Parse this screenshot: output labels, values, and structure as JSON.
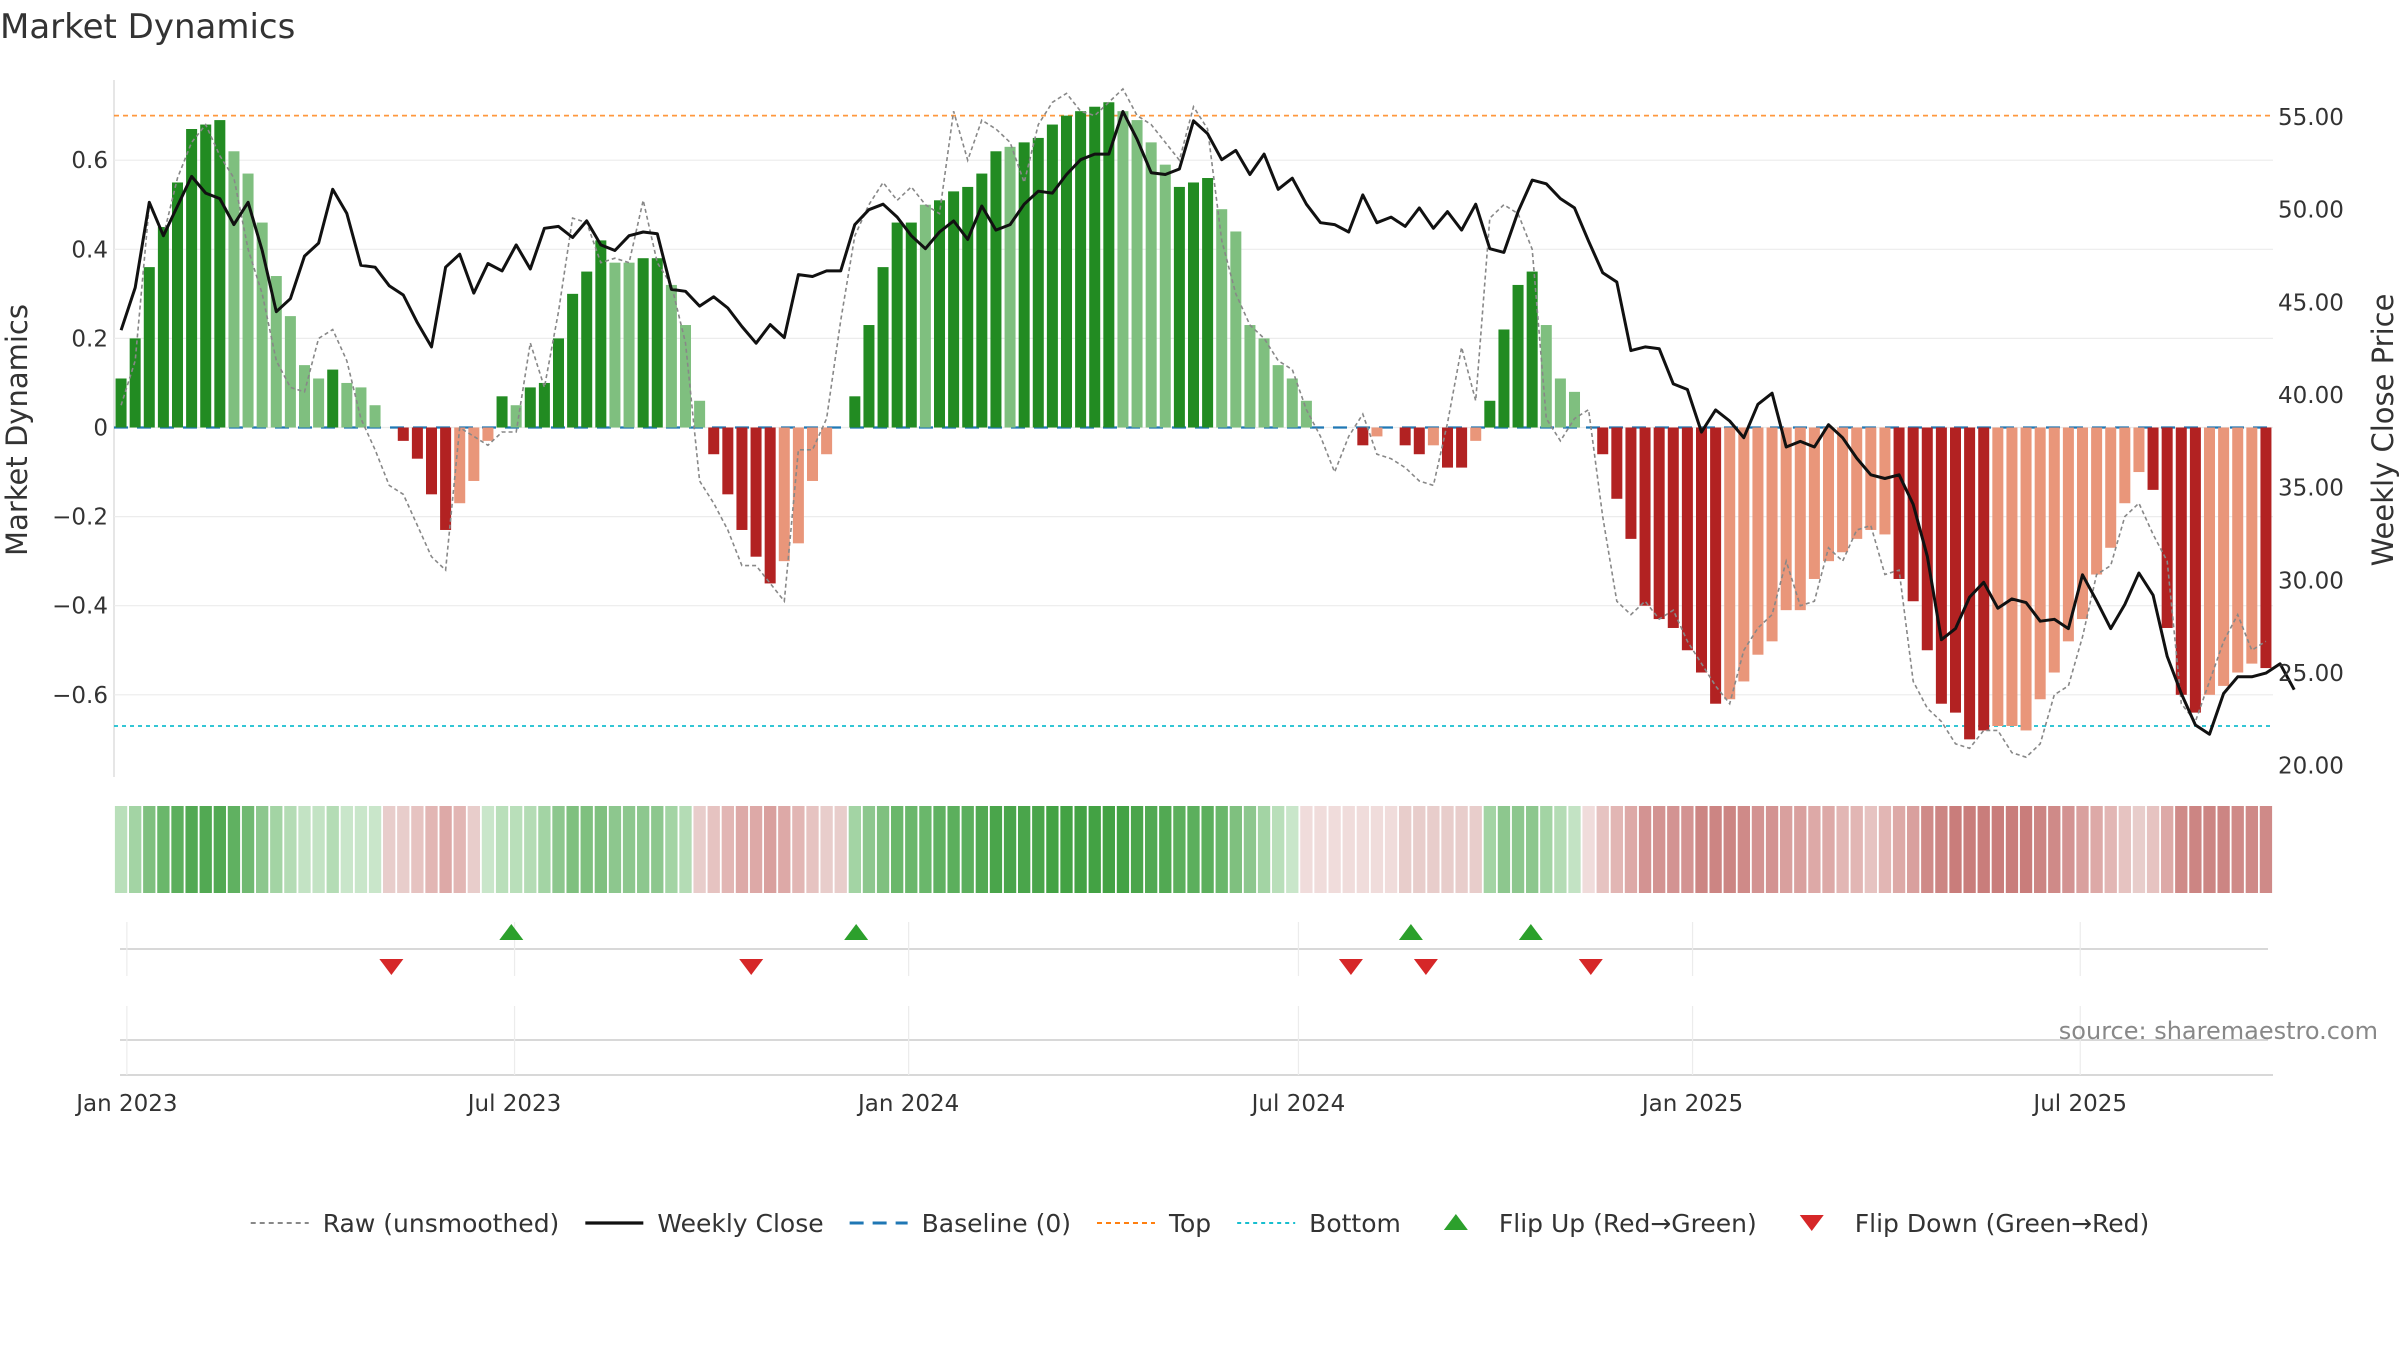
{
  "chart_data": {
    "type": "bar",
    "title": "Market Dynamics",
    "ylabel": "Market Dynamics",
    "y2label": "Weekly Close Price",
    "source": "source: sharemaestro.com",
    "ylim": [
      -0.78,
      0.78
    ],
    "y2lim": [
      19.5,
      57.0
    ],
    "x_start": "2022-12-26",
    "x_end": "2025-09-29",
    "y_ticks": [
      0.6,
      0.4,
      0.2,
      0,
      -0.2,
      -0.4,
      -0.6
    ],
    "y_tick_labels": [
      "0.6",
      "0.4",
      "0.2",
      "0",
      "−0.2",
      "−0.4",
      "−0.6"
    ],
    "y2_ticks": [
      55,
      50,
      45,
      40,
      35,
      30,
      25,
      20
    ],
    "y2_tick_labels": [
      "55.00",
      "50.00",
      "45.00",
      "40.00",
      "35.00",
      "30.00",
      "25.00",
      "20.00"
    ],
    "x_ticks": [
      {
        "date": "2023-01-01",
        "label": "Jan 2023"
      },
      {
        "date": "2023-07-01",
        "label": "Jul 2023"
      },
      {
        "date": "2024-01-01",
        "label": "Jan 2024"
      },
      {
        "date": "2024-07-01",
        "label": "Jul 2024"
      },
      {
        "date": "2025-01-01",
        "label": "Jan 2025"
      },
      {
        "date": "2025-07-01",
        "label": "Jul 2025"
      }
    ],
    "top_line": 0.7,
    "bottom_line": -0.67,
    "baseline": 0,
    "grid": true,
    "legend_placement": "bottom-center",
    "colors": {
      "strong_green": "#228b22",
      "light_green": "#7fbf7f",
      "strong_red": "#b22222",
      "light_red": "#e9967a",
      "close_line": "#111111",
      "raw_line": "#888888",
      "baseline": "#1f77b4",
      "top": "#ff7f0e",
      "bottom": "#17becf",
      "flip_up": "#2ca02c",
      "flip_down": "#d62728"
    },
    "bar_values": [
      0.11,
      0.2,
      0.36,
      0.45,
      0.55,
      0.67,
      0.68,
      0.69,
      0.62,
      0.57,
      0.46,
      0.34,
      0.25,
      0.14,
      0.11,
      0.13,
      0.1,
      0.09,
      0.05,
      0,
      -0.03,
      -0.07,
      -0.15,
      -0.23,
      -0.17,
      -0.12,
      -0.03,
      0.07,
      0.05,
      0.09,
      0.1,
      0.2,
      0.3,
      0.35,
      0.42,
      0.37,
      0.37,
      0.38,
      0.38,
      0.32,
      0.23,
      0.06,
      -0.06,
      -0.15,
      -0.23,
      -0.29,
      -0.35,
      -0.3,
      -0.26,
      -0.12,
      -0.06,
      0,
      0.07,
      0.23,
      0.36,
      0.46,
      0.46,
      0.5,
      0.51,
      0.53,
      0.54,
      0.57,
      0.62,
      0.63,
      0.64,
      0.65,
      0.68,
      0.7,
      0.71,
      0.72,
      0.73,
      0.71,
      0.69,
      0.64,
      0.59,
      0.54,
      0.55,
      0.56,
      0.49,
      0.44,
      0.23,
      0.2,
      0.14,
      0.11,
      0.06,
      0,
      0,
      0,
      -0.04,
      -0.02,
      0,
      -0.04,
      -0.06,
      -0.04,
      -0.09,
      -0.09,
      -0.03,
      0.06,
      0.22,
      0.32,
      0.35,
      0.23,
      0.11,
      0.08,
      0,
      -0.06,
      -0.16,
      -0.25,
      -0.4,
      -0.43,
      -0.45,
      -0.5,
      -0.55,
      -0.62,
      -0.61,
      -0.57,
      -0.51,
      -0.48,
      -0.41,
      -0.41,
      -0.34,
      -0.3,
      -0.28,
      -0.25,
      -0.23,
      -0.24,
      -0.34,
      -0.39,
      -0.5,
      -0.62,
      -0.64,
      -0.7,
      -0.68,
      -0.67,
      -0.67,
      -0.68,
      -0.61,
      -0.55,
      -0.48,
      -0.43,
      -0.33,
      -0.27,
      -0.17,
      -0.1,
      -0.14,
      -0.45,
      -0.6,
      -0.64,
      -0.6,
      -0.58,
      -0.55,
      -0.53,
      -0.54
    ],
    "bar_strength": [
      1,
      1,
      1,
      1,
      1,
      1,
      1,
      1,
      0,
      0,
      0,
      0,
      0,
      0,
      0,
      1,
      0,
      0,
      0,
      0,
      1,
      1,
      1,
      1,
      0,
      0,
      0,
      1,
      0,
      1,
      1,
      1,
      1,
      1,
      1,
      0,
      0,
      1,
      1,
      0,
      0,
      0,
      1,
      1,
      1,
      1,
      1,
      0,
      0,
      0,
      0,
      0,
      1,
      1,
      1,
      1,
      1,
      0,
      1,
      1,
      1,
      1,
      1,
      0,
      1,
      1,
      1,
      1,
      1,
      1,
      1,
      0,
      0,
      0,
      0,
      1,
      1,
      1,
      0,
      0,
      0,
      0,
      0,
      0,
      0,
      0,
      0,
      0,
      1,
      0,
      0,
      1,
      1,
      0,
      1,
      1,
      0,
      1,
      1,
      1,
      1,
      0,
      0,
      0,
      0,
      1,
      1,
      1,
      1,
      1,
      1,
      1,
      1,
      1,
      0,
      0,
      0,
      0,
      0,
      0,
      0,
      0,
      0,
      0,
      0,
      0,
      1,
      1,
      1,
      1,
      1,
      1,
      1,
      0,
      0,
      0,
      0,
      0,
      0,
      0,
      0,
      0,
      0,
      0,
      1,
      1,
      1,
      1,
      0,
      0,
      0,
      0,
      1
    ],
    "close": [
      43.5,
      45.8,
      50.4,
      48.6,
      50.2,
      51.8,
      50.9,
      50.6,
      49.2,
      50.4,
      47.8,
      44.5,
      45.2,
      47.5,
      48.2,
      51.1,
      49.8,
      47,
      46.9,
      45.9,
      45.4,
      43.9,
      42.6,
      46.9,
      47.6,
      45.5,
      47.1,
      46.7,
      48.1,
      46.8,
      49,
      49.1,
      48.5,
      49.4,
      48.1,
      47.8,
      48.6,
      48.8,
      48.7,
      45.7,
      45.6,
      44.8,
      45.3,
      44.7,
      43.7,
      42.8,
      43.8,
      43.1,
      46.5,
      46.4,
      46.7,
      46.7,
      49.2,
      50,
      50.3,
      49.6,
      48.6,
      47.9,
      48.8,
      49.4,
      48.4,
      50.2,
      48.9,
      49.2,
      50.3,
      51,
      50.9,
      51.9,
      52.7,
      53,
      53,
      55.3,
      53.8,
      52,
      51.9,
      52.2,
      54.8,
      54.1,
      52.7,
      53.2,
      51.9,
      53,
      51.1,
      51.7,
      50.3,
      49.3,
      49.2,
      48.8,
      50.8,
      49.3,
      49.6,
      49.1,
      50.1,
      49,
      49.9,
      48.9,
      50.3,
      47.9,
      47.7,
      49.9,
      51.6,
      51.4,
      50.6,
      50.1,
      48.3,
      46.6,
      46.1,
      42.4,
      42.6,
      42.5,
      40.6,
      40.3,
      38,
      39.2,
      38.6,
      37.7,
      39.5,
      40.1,
      37.2,
      37.5,
      37.2,
      38.4,
      37.7,
      36.6,
      35.7,
      35.5,
      35.7,
      34.1,
      31.3,
      26.8,
      27.4,
      29.1,
      29.9,
      28.5,
      29,
      28.8,
      27.8,
      27.9,
      27.4,
      30.3,
      28.9,
      27.4,
      28.7,
      30.4,
      29.2,
      25.9,
      23.9,
      22.2,
      21.7,
      23.9,
      24.8,
      24.8,
      25,
      25.5,
      24.1
    ],
    "raw": [
      0.05,
      0.15,
      0.5,
      0.43,
      0.56,
      0.64,
      0.68,
      0.61,
      0.56,
      0.4,
      0.3,
      0.15,
      0.09,
      0.08,
      0.2,
      0.22,
      0.15,
      0.02,
      -0.05,
      -0.13,
      -0.15,
      -0.22,
      -0.29,
      -0.32,
      0,
      -0.02,
      -0.04,
      -0.01,
      -0.01,
      0.19,
      0.09,
      0.26,
      0.47,
      0.46,
      0.37,
      0.38,
      0.37,
      0.51,
      0.37,
      0.32,
      0.19,
      -0.12,
      -0.17,
      -0.23,
      -0.31,
      -0.31,
      -0.35,
      -0.39,
      -0.05,
      -0.05,
      0.02,
      0.24,
      0.43,
      0.5,
      0.55,
      0.51,
      0.54,
      0.5,
      0.48,
      0.71,
      0.6,
      0.69,
      0.67,
      0.64,
      0.55,
      0.68,
      0.73,
      0.75,
      0.71,
      0.7,
      0.73,
      0.76,
      0.7,
      0.68,
      0.64,
      0.6,
      0.72,
      0.67,
      0.42,
      0.3,
      0.23,
      0.2,
      0.15,
      0.13,
      0.04,
      -0.02,
      -0.1,
      -0.02,
      0.03,
      -0.06,
      -0.07,
      -0.09,
      -0.12,
      -0.13,
      0.01,
      0.18,
      0.06,
      0.47,
      0.5,
      0.48,
      0.4,
      0.02,
      -0.03,
      0.02,
      0.04,
      -0.2,
      -0.39,
      -0.42,
      -0.39,
      -0.43,
      -0.41,
      -0.48,
      -0.53,
      -0.58,
      -0.62,
      -0.5,
      -0.45,
      -0.42,
      -0.3,
      -0.4,
      -0.39,
      -0.27,
      -0.3,
      -0.23,
      -0.22,
      -0.33,
      -0.32,
      -0.57,
      -0.63,
      -0.66,
      -0.71,
      -0.72,
      -0.68,
      -0.68,
      -0.73,
      -0.74,
      -0.71,
      -0.6,
      -0.58,
      -0.47,
      -0.33,
      -0.31,
      -0.2,
      -0.17,
      -0.24,
      -0.3,
      -0.62,
      -0.66,
      -0.57,
      -0.48,
      -0.42,
      -0.5,
      -0.48
    ]
  },
  "state_band": {
    "colors": [
      "#b9dfba",
      "#a3d4a4",
      "#7fc07f",
      "#6ab76b",
      "#5caf5d",
      "#52a953",
      "#52a953",
      "#52a953",
      "#60b161",
      "#70b971",
      "#8dc78e",
      "#a3d4a4",
      "#b4dcb5",
      "#c3e3c4",
      "#c3e3c4",
      "#b4dcb5",
      "#c9e6ca",
      "#c9e6ca",
      "#c9e6ca",
      "#e8cdcb",
      "#e8cdcb",
      "#e6c3c1",
      "#e2b6b4",
      "#dda9a7",
      "#e2b6b4",
      "#e8cdcb",
      "#c9e6ca",
      "#b9dfba",
      "#b9dfba",
      "#b4dcb5",
      "#a3d4a4",
      "#8dc78e",
      "#7fc07f",
      "#7fc07f",
      "#7fc07f",
      "#8dc78e",
      "#8dc78e",
      "#8dc78e",
      "#8dc78e",
      "#a3d4a4",
      "#b4dcb5",
      "#e8cdcb",
      "#e6c3c1",
      "#e2b6b4",
      "#dda9a7",
      "#dda9a7",
      "#d9a09e",
      "#dda9a7",
      "#e2b6b4",
      "#e6c3c1",
      "#e8cdcb",
      "#e8cdcb",
      "#a3d4a4",
      "#8dc78e",
      "#7fc07f",
      "#6ab76b",
      "#6ab76b",
      "#6ab76b",
      "#60b161",
      "#5caf5d",
      "#5caf5d",
      "#52a953",
      "#4aa54b",
      "#4aa54b",
      "#4aa54b",
      "#4aa54b",
      "#43a244",
      "#43a244",
      "#43a244",
      "#43a244",
      "#43a244",
      "#43a244",
      "#4aa54b",
      "#52a953",
      "#52a953",
      "#5caf5d",
      "#5caf5d",
      "#5caf5d",
      "#6ab76b",
      "#7fc07f",
      "#8dc78e",
      "#a3d4a4",
      "#b9dfba",
      "#c9e6ca",
      "#f0dcdb",
      "#f0dcdb",
      "#f0dcdb",
      "#f0dcdb",
      "#f0dcdb",
      "#f0dcdb",
      "#f0dcdb",
      "#e8cdcb",
      "#e8cdcb",
      "#e8cdcb",
      "#e8cdcb",
      "#e8cdcb",
      "#e8cdcb",
      "#a3d4a4",
      "#8dc78e",
      "#8dc78e",
      "#8dc78e",
      "#a3d4a4",
      "#b4dcb5",
      "#c3e3c4",
      "#f0dcdb",
      "#e6c3c1",
      "#e2b6b4",
      "#dda9a7",
      "#d39392",
      "#d39392",
      "#d39392",
      "#d39392",
      "#cc8583",
      "#cc8583",
      "#cc8583",
      "#cf8a88",
      "#d39392",
      "#d39392",
      "#d9a09e",
      "#d9a09e",
      "#dda9a7",
      "#dda9a7",
      "#e2b6b4",
      "#e2b6b4",
      "#e6c3c1",
      "#e2b6b4",
      "#dda9a7",
      "#d9a09e",
      "#cf8a88",
      "#cc8583",
      "#c97d7b",
      "#c97d7b",
      "#c97d7b",
      "#c97d7b",
      "#c97d7b",
      "#c97d7b",
      "#cc8583",
      "#cf8a88",
      "#d39392",
      "#d9a09e",
      "#dda9a7",
      "#e2b6b4",
      "#e6c3c1",
      "#e8cdcb",
      "#e6c3c1",
      "#dda9a7",
      "#cf8a88",
      "#cc8583",
      "#cc8583",
      "#cc8583",
      "#cf8a88",
      "#cf8a88",
      "#cf8a88"
    ]
  },
  "flips": {
    "up": [
      "2023-06-26",
      "2023-12-04",
      "2024-08-19",
      "2024-10-14"
    ],
    "down": [
      "2023-05-01",
      "2023-10-16",
      "2024-07-22",
      "2024-08-26",
      "2024-11-11"
    ]
  },
  "legend": [
    {
      "key": "raw",
      "label": "Raw (unsmoothed)"
    },
    {
      "key": "close",
      "label": "Weekly Close"
    },
    {
      "key": "baseline",
      "label": "Baseline (0)"
    },
    {
      "key": "top",
      "label": "Top"
    },
    {
      "key": "bottom",
      "label": "Bottom"
    },
    {
      "key": "flip_up",
      "label": "Flip Up (Red→Green)"
    },
    {
      "key": "flip_down",
      "label": "Flip Down (Green→Red)"
    }
  ]
}
